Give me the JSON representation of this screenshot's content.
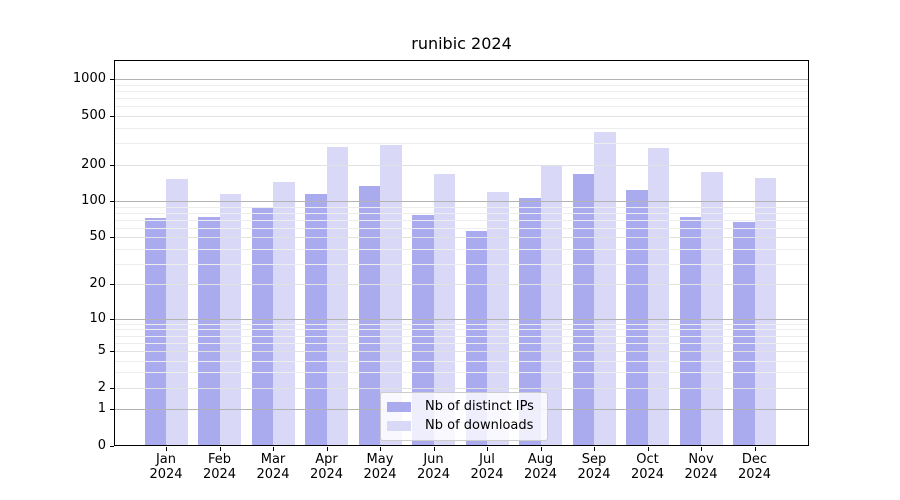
{
  "title": "runibic 2024",
  "colors": {
    "ips": "#aaaaef",
    "downloads": "#d9d9f7",
    "grid_decade": "#b3b3b3",
    "grid_labeled": "#e2e2e2",
    "grid_minor": "#ededed",
    "axis": "#000000",
    "background": "#ffffff"
  },
  "legend": {
    "items": [
      {
        "key": "ips",
        "label": "Nb of distinct IPs"
      },
      {
        "key": "downloads",
        "label": "Nb of downloads"
      }
    ]
  },
  "chart_data": {
    "type": "bar",
    "title": "runibic 2024",
    "categories": [
      "Jan 2024",
      "Feb 2024",
      "Mar 2024",
      "Apr 2024",
      "May 2024",
      "Jun 2024",
      "Jul 2024",
      "Aug 2024",
      "Sep 2024",
      "Oct 2024",
      "Nov 2024",
      "Dec 2024"
    ],
    "series": [
      {
        "name": "Nb of distinct IPs",
        "values": [
          72,
          74,
          90,
          114,
          133,
          77,
          56,
          106,
          167,
          123,
          74,
          67
        ]
      },
      {
        "name": "Nb of downloads",
        "values": [
          152,
          115,
          144,
          277,
          289,
          166,
          119,
          196,
          368,
          272,
          173,
          156
        ]
      }
    ],
    "yscale": "log(x+1)",
    "ylim": [
      0,
      1440
    ],
    "y_major_ticks": [
      0,
      1,
      2,
      5,
      10,
      20,
      50,
      100,
      200,
      500,
      1000
    ],
    "y_decade_gridlines": [
      1,
      10,
      100,
      1000
    ],
    "y_minor_gridlines": [
      3,
      4,
      6,
      7,
      8,
      9,
      30,
      40,
      60,
      70,
      80,
      90,
      300,
      400,
      600,
      700,
      800,
      900
    ],
    "xlabel": "",
    "ylabel": "",
    "grid": "on",
    "legend_position": "bottom-center"
  }
}
